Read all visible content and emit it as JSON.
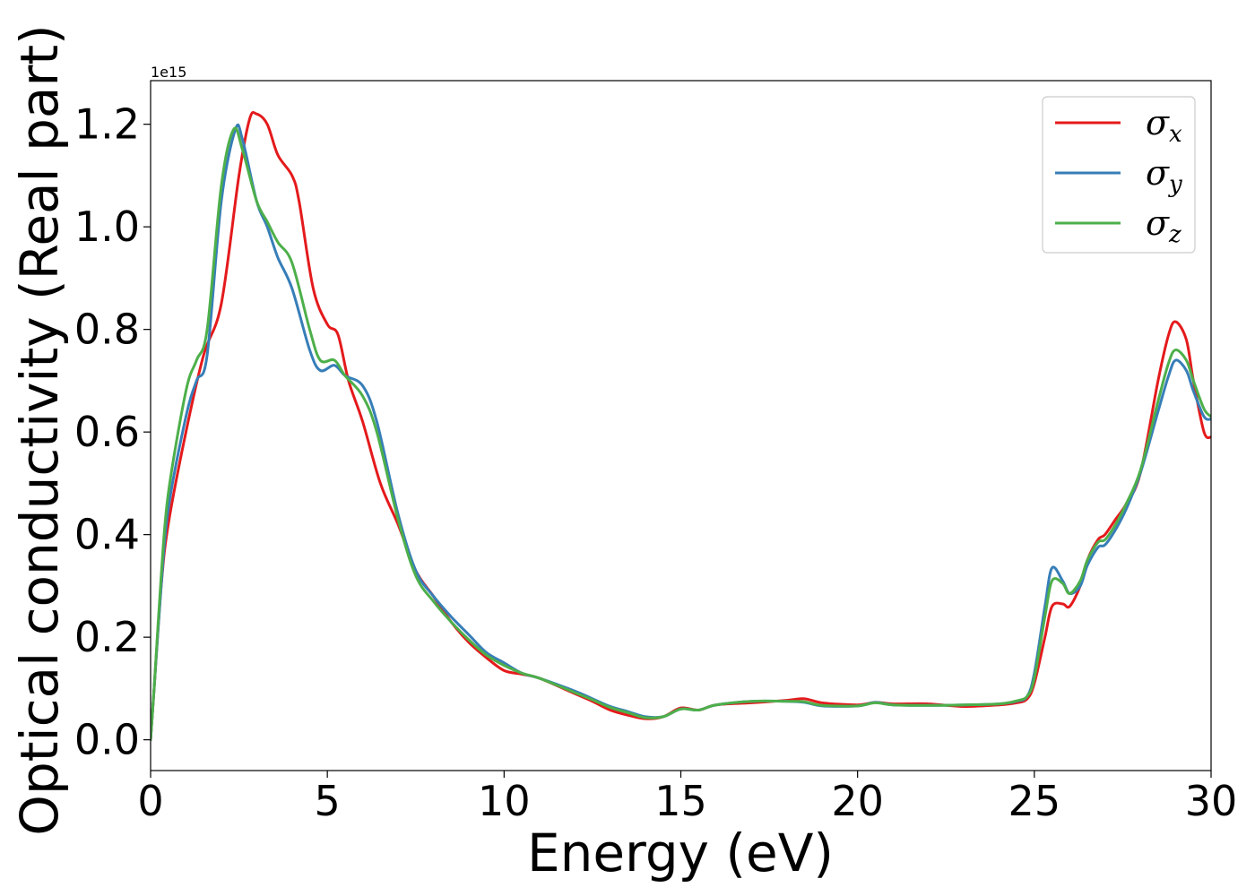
{
  "chart_data": {
    "type": "line",
    "title": "",
    "xlabel": "Energy (eV)",
    "ylabel": "Optical conductivity (Real part)",
    "y_offset_label": "1e15",
    "y_scale_factor": 1000000000000000.0,
    "xlim": [
      0,
      30
    ],
    "ylim": [
      -0.06,
      1.285
    ],
    "xticks": [
      0,
      5,
      10,
      15,
      20,
      25,
      30
    ],
    "xtick_labels": [
      "0",
      "5",
      "10",
      "15",
      "20",
      "25",
      "30"
    ],
    "yticks": [
      0.0,
      0.2,
      0.4,
      0.6,
      0.8,
      1.0,
      1.2
    ],
    "ytick_labels": [
      "0.0",
      "0.2",
      "0.4",
      "0.6",
      "0.8",
      "1.0",
      "1.2"
    ],
    "grid": false,
    "legend_position": "top-right",
    "series": [
      {
        "name": "σx",
        "legend_symbol": "σ",
        "legend_sub": "x",
        "color": "#e41a1c",
        "x": [
          0,
          0.1,
          0.3,
          0.5,
          1.0,
          1.5,
          2.0,
          2.5,
          2.8,
          3.0,
          3.3,
          3.6,
          4.0,
          4.2,
          4.6,
          5.0,
          5.3,
          5.6,
          6.0,
          6.5,
          7.0,
          7.5,
          8.0,
          8.5,
          9.0,
          9.5,
          10.0,
          10.5,
          11.0,
          12.0,
          12.5,
          13.0,
          13.5,
          14.0,
          14.5,
          15.0,
          15.5,
          16.0,
          17.0,
          18.0,
          18.5,
          19.0,
          20.0,
          20.5,
          21.0,
          22.0,
          23.0,
          24.0,
          24.5,
          24.8,
          25.0,
          25.3,
          25.5,
          25.8,
          26.0,
          26.3,
          26.5,
          26.8,
          27.0,
          27.3,
          27.6,
          28.0,
          28.5,
          28.8,
          29.0,
          29.3,
          29.5,
          29.8,
          30.0
        ],
        "y": [
          0.0,
          0.1,
          0.3,
          0.42,
          0.6,
          0.75,
          0.85,
          1.1,
          1.21,
          1.22,
          1.2,
          1.14,
          1.1,
          1.05,
          0.88,
          0.81,
          0.79,
          0.7,
          0.62,
          0.5,
          0.42,
          0.33,
          0.28,
          0.23,
          0.19,
          0.16,
          0.135,
          0.128,
          0.12,
          0.09,
          0.075,
          0.058,
          0.048,
          0.041,
          0.045,
          0.062,
          0.058,
          0.068,
          0.072,
          0.077,
          0.08,
          0.072,
          0.068,
          0.073,
          0.07,
          0.07,
          0.065,
          0.068,
          0.072,
          0.08,
          0.11,
          0.2,
          0.26,
          0.265,
          0.26,
          0.3,
          0.35,
          0.39,
          0.4,
          0.43,
          0.46,
          0.52,
          0.7,
          0.79,
          0.815,
          0.78,
          0.7,
          0.6,
          0.59
        ]
      },
      {
        "name": "σy",
        "legend_symbol": "σ",
        "legend_sub": "y",
        "color": "#377eb8",
        "x": [
          0,
          0.1,
          0.3,
          0.5,
          1.0,
          1.3,
          1.6,
          2.0,
          2.4,
          2.6,
          3.0,
          3.3,
          3.6,
          4.0,
          4.5,
          4.8,
          5.2,
          5.5,
          6.0,
          6.4,
          7.0,
          7.5,
          8.0,
          8.5,
          9.0,
          9.5,
          10.0,
          10.5,
          11.0,
          12.0,
          12.5,
          13.0,
          13.5,
          14.0,
          14.5,
          15.0,
          15.5,
          16.0,
          17.0,
          18.0,
          18.5,
          19.0,
          20.0,
          20.5,
          21.0,
          22.0,
          23.0,
          24.0,
          24.5,
          24.8,
          25.0,
          25.3,
          25.5,
          25.8,
          26.0,
          26.3,
          26.5,
          26.8,
          27.0,
          27.3,
          27.6,
          28.0,
          28.5,
          28.8,
          29.0,
          29.3,
          29.5,
          29.8,
          30.0
        ],
        "y": [
          0.0,
          0.1,
          0.3,
          0.45,
          0.63,
          0.7,
          0.75,
          1.05,
          1.19,
          1.17,
          1.05,
          1.0,
          0.94,
          0.88,
          0.76,
          0.72,
          0.73,
          0.71,
          0.69,
          0.62,
          0.44,
          0.33,
          0.28,
          0.24,
          0.205,
          0.17,
          0.15,
          0.13,
          0.12,
          0.095,
          0.08,
          0.065,
          0.055,
          0.045,
          0.045,
          0.06,
          0.058,
          0.068,
          0.075,
          0.075,
          0.073,
          0.066,
          0.066,
          0.073,
          0.068,
          0.067,
          0.068,
          0.07,
          0.075,
          0.085,
          0.13,
          0.26,
          0.335,
          0.31,
          0.285,
          0.3,
          0.34,
          0.375,
          0.38,
          0.41,
          0.45,
          0.52,
          0.64,
          0.71,
          0.74,
          0.72,
          0.68,
          0.63,
          0.625
        ]
      },
      {
        "name": "σz",
        "legend_symbol": "σ",
        "legend_sub": "z",
        "color": "#4daf4a",
        "x": [
          0,
          0.1,
          0.3,
          0.5,
          1.0,
          1.3,
          1.6,
          2.0,
          2.35,
          2.6,
          3.0,
          3.3,
          3.6,
          4.0,
          4.5,
          4.8,
          5.2,
          5.5,
          6.0,
          6.4,
          7.0,
          7.5,
          8.0,
          8.5,
          9.0,
          9.5,
          10.0,
          10.5,
          11.0,
          12.0,
          12.5,
          13.0,
          13.5,
          14.0,
          14.5,
          15.0,
          15.5,
          16.0,
          17.0,
          18.0,
          18.5,
          19.0,
          20.0,
          20.5,
          21.0,
          22.0,
          23.0,
          24.0,
          24.5,
          24.8,
          25.0,
          25.3,
          25.5,
          25.8,
          26.0,
          26.3,
          26.5,
          26.8,
          27.0,
          27.3,
          27.6,
          28.0,
          28.5,
          28.8,
          29.0,
          29.3,
          29.5,
          29.8,
          30.0
        ],
        "y": [
          0.0,
          0.1,
          0.32,
          0.48,
          0.68,
          0.74,
          0.8,
          1.08,
          1.19,
          1.15,
          1.05,
          1.01,
          0.97,
          0.93,
          0.8,
          0.74,
          0.74,
          0.71,
          0.67,
          0.6,
          0.43,
          0.32,
          0.27,
          0.23,
          0.195,
          0.165,
          0.145,
          0.13,
          0.12,
          0.092,
          0.078,
          0.063,
          0.053,
          0.043,
          0.045,
          0.06,
          0.058,
          0.068,
          0.075,
          0.075,
          0.074,
          0.067,
          0.066,
          0.072,
          0.068,
          0.067,
          0.068,
          0.07,
          0.076,
          0.085,
          0.12,
          0.24,
          0.31,
          0.305,
          0.285,
          0.31,
          0.35,
          0.385,
          0.39,
          0.42,
          0.46,
          0.525,
          0.66,
          0.735,
          0.76,
          0.74,
          0.7,
          0.645,
          0.63
        ]
      }
    ]
  }
}
